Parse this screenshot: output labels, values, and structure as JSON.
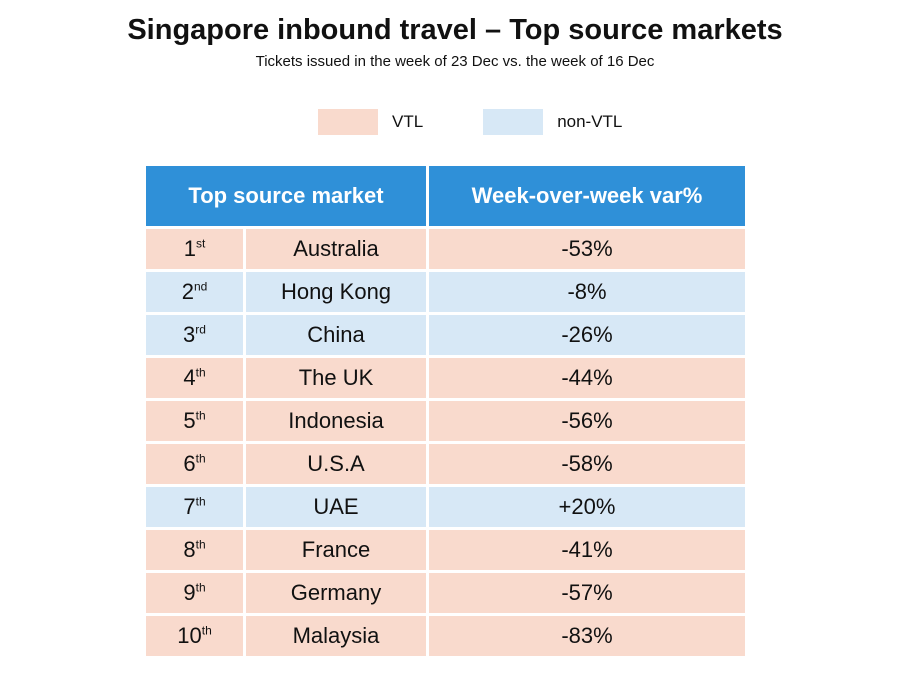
{
  "header": {
    "title": "Singapore inbound travel – Top source markets",
    "subtitle": "Tickets issued in the week of 23 Dec vs. the week of 16 Dec"
  },
  "legend": [
    {
      "name": "VTL",
      "color": "#f9dacd"
    },
    {
      "name": "non-VTL",
      "color": "#d7e8f6"
    }
  ],
  "table": {
    "header_color": "#2f90d8",
    "columns": [
      "Top source market",
      "Week-over-week var%"
    ],
    "rows": [
      {
        "rank": "1",
        "suffix": "st",
        "market": "Australia",
        "var": "-53%",
        "color": "#f9dacd"
      },
      {
        "rank": "2",
        "suffix": "nd",
        "market": "Hong Kong",
        "var": "-8%",
        "color": "#d7e8f6"
      },
      {
        "rank": "3",
        "suffix": "rd",
        "market": "China",
        "var": "-26%",
        "color": "#d7e8f6"
      },
      {
        "rank": "4",
        "suffix": "th",
        "market": "The UK",
        "var": "-44%",
        "color": "#f9dacd"
      },
      {
        "rank": "5",
        "suffix": "th",
        "market": "Indonesia",
        "var": "-56%",
        "color": "#f9dacd"
      },
      {
        "rank": "6",
        "suffix": "th",
        "market": "U.S.A",
        "var": "-58%",
        "color": "#f9dacd"
      },
      {
        "rank": "7",
        "suffix": "th",
        "market": "UAE",
        "var": "+20%",
        "color": "#d7e8f6"
      },
      {
        "rank": "8",
        "suffix": "th",
        "market": "France",
        "var": "-41%",
        "color": "#f9dacd"
      },
      {
        "rank": "9",
        "suffix": "th",
        "market": "Germany",
        "var": "-57%",
        "color": "#f9dacd"
      },
      {
        "rank": "10",
        "suffix": "th",
        "market": "Malaysia",
        "var": "-83%",
        "color": "#f9dacd"
      }
    ]
  }
}
